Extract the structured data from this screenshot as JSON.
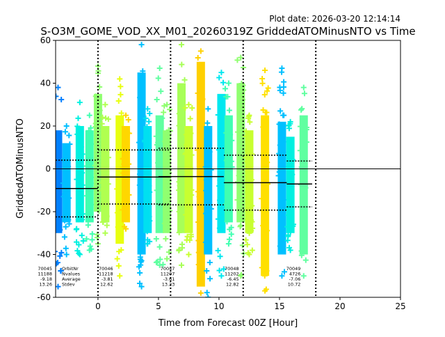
{
  "chart_data": {
    "type": "scatter",
    "title": "S-O3M_GOME_VOD_XX_M01_20260319Z GriddedATOMinusNTO vs Time",
    "plot_date": "Plot date: 2026-03-20 12:14:14",
    "xlabel": "Time from Forecast 00Z [Hour]",
    "ylabel": "GriddedATOMinusNTO",
    "xlim": [
      -3.5,
      25
    ],
    "ylim": [
      -60,
      60
    ],
    "xticks": [
      0,
      5,
      10,
      15,
      20,
      25
    ],
    "yticks": [
      -60,
      -40,
      -20,
      0,
      20,
      40,
      60
    ],
    "grid": false,
    "vlines": [
      0,
      6,
      12,
      18
    ],
    "zero_line": 0,
    "strips": [
      {
        "x": -3.3,
        "color": "#0080ff",
        "ymin": -30,
        "ymax": 18,
        "omin": -55,
        "omax": 38
      },
      {
        "x": -2.6,
        "color": "#00bfff",
        "ymin": -25,
        "ymax": 12,
        "omin": -40,
        "omax": 20
      },
      {
        "x": -1.5,
        "color": "#00f0e0",
        "ymin": -25,
        "ymax": 20,
        "omin": -40,
        "omax": 31
      },
      {
        "x": -0.7,
        "color": "#40ffb0",
        "ymin": -25,
        "ymax": 18,
        "omin": -38,
        "omax": 25
      },
      {
        "x": 0.0,
        "color": "#90ff70",
        "ymin": -20,
        "ymax": 35,
        "omin": -35,
        "omax": 48
      },
      {
        "x": 0.6,
        "color": "#b0ff50",
        "ymin": -25,
        "ymax": 20,
        "omin": -30,
        "omax": 30
      },
      {
        "x": 1.8,
        "color": "#e8ff10",
        "ymin": -35,
        "ymax": 25,
        "omin": -50,
        "omax": 42
      },
      {
        "x": 2.3,
        "color": "#ffd700",
        "ymin": -25,
        "ymax": 20,
        "omin": -28,
        "omax": 25
      },
      {
        "x": 3.6,
        "color": "#00c0ff",
        "ymin": -40,
        "ymax": 45,
        "omin": -55,
        "omax": 58
      },
      {
        "x": 4.1,
        "color": "#00e0f0",
        "ymin": -30,
        "ymax": 20,
        "omin": -35,
        "omax": 28
      },
      {
        "x": 5.1,
        "color": "#60ffa0",
        "ymin": -30,
        "ymax": 25,
        "omin": -45,
        "omax": 47
      },
      {
        "x": 5.7,
        "color": "#90ff70",
        "ymin": -30,
        "ymax": 18,
        "omin": -42,
        "omax": 30
      },
      {
        "x": 6.9,
        "color": "#a8ff58",
        "ymin": -30,
        "ymax": 40,
        "omin": -45,
        "omax": 58
      },
      {
        "x": 7.5,
        "color": "#c8ff30",
        "ymin": -30,
        "ymax": 20,
        "omin": -40,
        "omax": 30
      },
      {
        "x": 8.5,
        "color": "#ffd000",
        "ymin": -55,
        "ymax": 50,
        "omin": -58,
        "omax": 55
      },
      {
        "x": 9.1,
        "color": "#00bfff",
        "ymin": -40,
        "ymax": 20,
        "omin": -60,
        "omax": 28
      },
      {
        "x": 10.2,
        "color": "#00e8f0",
        "ymin": -30,
        "ymax": 35,
        "omin": -50,
        "omax": 45
      },
      {
        "x": 10.8,
        "color": "#40ffb0",
        "ymin": -25,
        "ymax": 25,
        "omin": -35,
        "omax": 40
      },
      {
        "x": 11.8,
        "color": "#90ff70",
        "ymin": -25,
        "ymax": 40,
        "omin": -50,
        "omax": 52
      },
      {
        "x": 12.5,
        "color": "#c8ff30",
        "ymin": -30,
        "ymax": 18,
        "omin": -40,
        "omax": 25
      },
      {
        "x": 13.8,
        "color": "#ffe000",
        "ymin": -50,
        "ymax": 25,
        "omin": -57,
        "omax": 46
      },
      {
        "x": 15.2,
        "color": "#00c0ff",
        "ymin": -40,
        "ymax": 22,
        "omin": -50,
        "omax": 47
      },
      {
        "x": 15.9,
        "color": "#00f0e0",
        "ymin": -30,
        "ymax": 15,
        "omin": -38,
        "omax": 22
      },
      {
        "x": 17.0,
        "color": "#60ffa0",
        "ymin": -40,
        "ymax": 25,
        "omin": -50,
        "omax": 38
      }
    ],
    "orbits": [
      {
        "orbit": "70045",
        "nvalues": "11188",
        "average": "-9.18",
        "stdev": "13.26",
        "mean": -9.18,
        "sd": 13.26,
        "x0": -3.5,
        "x1": 0,
        "label_x": -3.2
      },
      {
        "orbit": "70046",
        "nvalues": "11218",
        "average": "-3.81",
        "stdev": "12.62",
        "mean": -3.81,
        "sd": 12.62,
        "x0": 0,
        "x1": 6,
        "label_x": 0.1
      },
      {
        "orbit": "70047",
        "nvalues": "11207",
        "average": "-3.61",
        "stdev": "13.23",
        "mean": -3.61,
        "sd": 13.23,
        "x0": 5,
        "x1": 10.4,
        "label_x": 5.2
      },
      {
        "orbit": "70048",
        "nvalues": "11202",
        "average": "-6.45",
        "stdev": "12.82",
        "mean": -6.45,
        "sd": 12.82,
        "x0": 10.4,
        "x1": 15.6,
        "label_x": 10.5
      },
      {
        "orbit": "70049",
        "nvalues": "4726",
        "average": "-7.06",
        "stdev": "10.72",
        "mean": -7.06,
        "sd": 10.72,
        "x0": 15.6,
        "x1": 17.7,
        "label_x": 15.6
      }
    ],
    "legend_labels": [
      "OrbitNr",
      "Nvalues",
      "Average",
      "Stdev"
    ]
  }
}
